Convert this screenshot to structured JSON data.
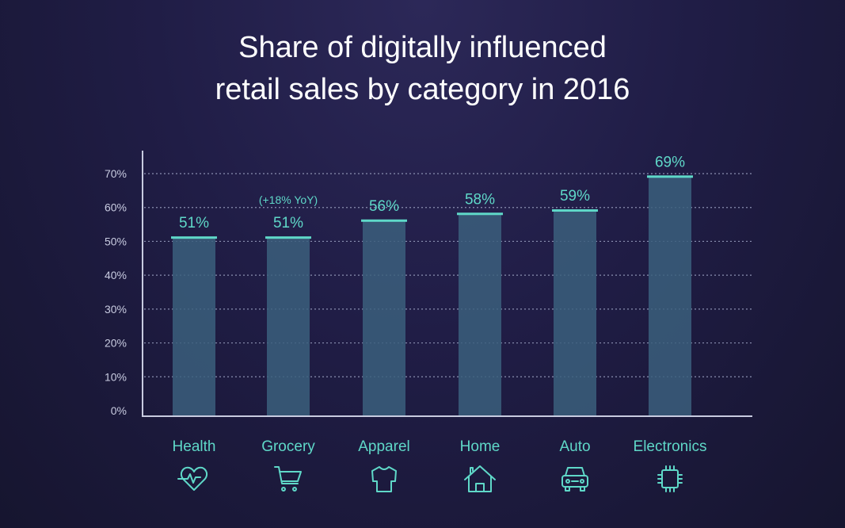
{
  "colors": {
    "accent": "#5fd8c8",
    "bar_fill": "#3b5f7c",
    "grid": "#8a8fb0",
    "axis": "#c8cbe0",
    "tick_text": "#c8cbe0"
  },
  "chart_data": {
    "type": "bar",
    "title_line1": "Share of digitally influenced",
    "title_line2": "retail sales by category in 2016",
    "categories": [
      "Health",
      "Grocery",
      "Apparel",
      "Home",
      "Auto",
      "Electronics"
    ],
    "icons": [
      "heart-pulse-icon",
      "shopping-cart-icon",
      "shirt-icon",
      "house-icon",
      "car-icon",
      "microchip-icon"
    ],
    "values": [
      51,
      51,
      56,
      58,
      59,
      69
    ],
    "data_labels": [
      "51%",
      "51%",
      "56%",
      "58%",
      "59%",
      "69%"
    ],
    "annotations": [
      {
        "category": "Grocery",
        "text": "(+18% YoY)"
      }
    ],
    "yticks": [
      "0%",
      "10%",
      "20%",
      "30%",
      "40%",
      "50%",
      "60%",
      "70%"
    ],
    "ylim": [
      0,
      70
    ],
    "grid": true,
    "legend": "none"
  }
}
